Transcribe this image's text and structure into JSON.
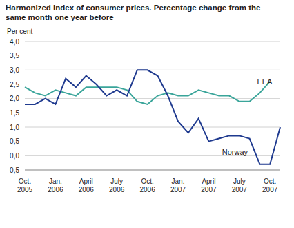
{
  "chart_data": {
    "type": "line",
    "title": "Harmonized index of consumer prices. Percentage change from the same month one year before",
    "y_label": "Per cent",
    "categories": [
      "Oct. 2005",
      null,
      null,
      "Jan. 2006",
      null,
      null,
      "April 2006",
      null,
      null,
      "July 2006",
      null,
      null,
      "Oct. 2006",
      null,
      null,
      "Jan. 2007",
      null,
      null,
      "April 2007",
      null,
      null,
      "July 2007",
      null,
      null,
      "Oct. 2007",
      null
    ],
    "series": [
      {
        "name": "EEA",
        "color": "#3aa59a",
        "values": [
          2.4,
          2.2,
          2.1,
          2.3,
          2.2,
          2.1,
          2.4,
          2.4,
          2.4,
          2.4,
          2.3,
          1.9,
          1.8,
          2.1,
          2.2,
          2.1,
          2.1,
          2.3,
          2.2,
          2.1,
          2.1,
          1.9,
          1.9,
          2.2,
          2.6,
          null
        ]
      },
      {
        "name": "Norway",
        "color": "#1f3a8f",
        "values": [
          1.8,
          1.8,
          2.0,
          1.8,
          2.7,
          2.4,
          2.8,
          2.5,
          2.1,
          2.3,
          2.1,
          3.0,
          3.0,
          2.8,
          2.1,
          1.2,
          0.8,
          1.3,
          0.5,
          0.6,
          0.7,
          0.7,
          0.6,
          -0.3,
          -0.3,
          1.0
        ]
      }
    ],
    "ylim": [
      -0.5,
      4.0
    ],
    "yticks": [
      {
        "value": -0.5,
        "label": "-0,5"
      },
      {
        "value": 0,
        "label": "0,0"
      },
      {
        "value": 0.5,
        "label": "0,5"
      },
      {
        "value": 1,
        "label": "1,0"
      },
      {
        "value": 1.5,
        "label": "1,5"
      },
      {
        "value": 2,
        "label": "2,0"
      },
      {
        "value": 2.5,
        "label": "2,5"
      },
      {
        "value": 3,
        "label": "3,0"
      },
      {
        "value": 3.5,
        "label": "3,5"
      },
      {
        "value": 4,
        "label": "4,0"
      }
    ],
    "grid": true
  }
}
